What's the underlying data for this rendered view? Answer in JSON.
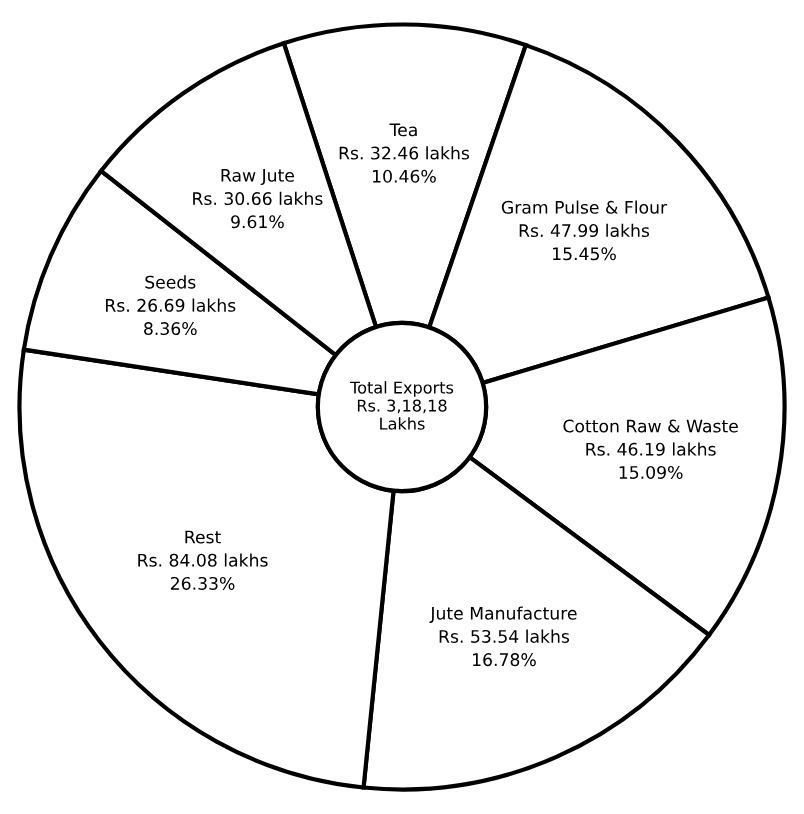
{
  "chart_data": {
    "type": "donut",
    "categories": [
      "Tea",
      "Gram Pulse & Flour",
      "Cotton Raw & Waste",
      "Jute Manufacture",
      "Rest",
      "Seeds",
      "Raw Jute"
    ],
    "values": [
      10.46,
      15.45,
      15.09,
      16.78,
      26.33,
      8.36,
      9.61
    ],
    "value_labels": [
      "Rs. 32.46 lakhs\n10.46%",
      "Rs. 47.99 lakhs\n15.45%",
      "Rs. 46.19 lakhs\n15.09%",
      "Rs. 53.54 lakhs\n16.78%",
      "Rs. 84.08 lakhs\n26.33%",
      "Rs. 26.69 lakhs\n8.36%",
      "Rs. 30.66 lakhs\n9.61%"
    ],
    "colors": [
      "#ffffff",
      "#ffffff",
      "#ffffff",
      "#ffffff",
      "#ffffff",
      "#ffffff",
      "#ffffff"
    ],
    "annotations": [
      "Total Exports\nRs. 3,18,18\nLakhs"
    ]
  }
}
